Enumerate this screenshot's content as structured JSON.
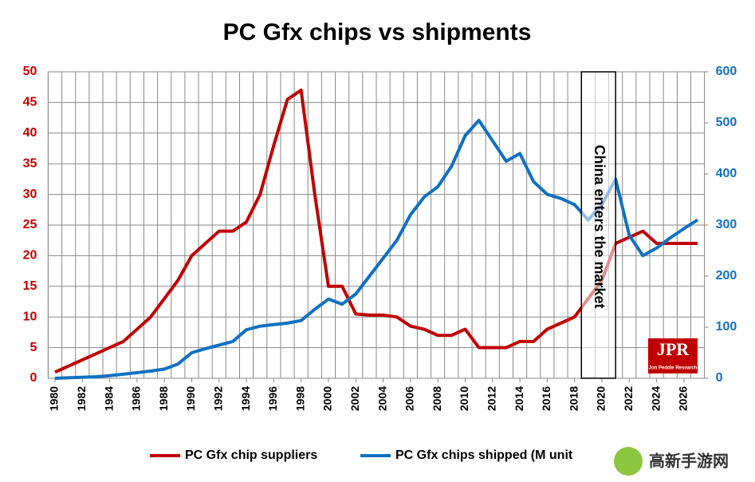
{
  "chart_data": {
    "type": "line",
    "title": "PC Gfx chips vs shipments",
    "x": [
      1980,
      1981,
      1982,
      1983,
      1984,
      1985,
      1986,
      1987,
      1988,
      1989,
      1990,
      1991,
      1992,
      1993,
      1994,
      1995,
      1996,
      1997,
      1998,
      1999,
      2000,
      2001,
      2002,
      2003,
      2004,
      2005,
      2006,
      2007,
      2008,
      2009,
      2010,
      2011,
      2012,
      2013,
      2014,
      2015,
      2016,
      2017,
      2018,
      2019,
      2020,
      2021,
      2022,
      2023,
      2024,
      2025,
      2026,
      2027
    ],
    "series": [
      {
        "name": "PC Gfx chip suppliers",
        "color": "#c00000",
        "values": [
          1,
          2,
          3,
          4,
          5,
          6,
          8,
          10,
          13,
          16,
          20,
          22,
          24,
          24,
          25.5,
          30,
          38,
          45.5,
          47,
          30,
          15,
          15,
          10.5,
          10.3,
          10.3,
          10,
          8.5,
          8,
          7,
          7,
          8,
          5,
          5,
          5,
          6,
          6,
          8,
          9,
          10,
          13,
          16,
          22,
          23,
          24,
          22,
          22,
          22,
          22
        ]
      },
      {
        "name": "PC Gfx chips shipped (M unit",
        "color": "#1070c0",
        "axis": "y2",
        "values": [
          0,
          1,
          2,
          3,
          5,
          8,
          11,
          14,
          18,
          28,
          50,
          58,
          65,
          72,
          95,
          102,
          105,
          108,
          113,
          135,
          155,
          145,
          165,
          200,
          235,
          270,
          320,
          355,
          375,
          415,
          475,
          505,
          465,
          425,
          440,
          385,
          360,
          352,
          340,
          310,
          340,
          390,
          280,
          240,
          255,
          275,
          293,
          310
        ]
      }
    ],
    "xlim": [
      1979.5,
      2027.5
    ],
    "xticks": [
      1980,
      1982,
      1984,
      1986,
      1988,
      1990,
      1992,
      1994,
      1996,
      1998,
      2000,
      2002,
      2004,
      2006,
      2008,
      2010,
      2012,
      2014,
      2016,
      2018,
      2020,
      2022,
      2024,
      2026
    ],
    "ylim": [
      0,
      50
    ],
    "yticks": [
      0,
      5,
      10,
      15,
      20,
      25,
      30,
      35,
      40,
      45,
      50
    ],
    "y2lim": [
      0,
      600
    ],
    "y2ticks": [
      0,
      100,
      200,
      300,
      400,
      500,
      600
    ],
    "grid": true,
    "annotation": {
      "text": "China enters the market",
      "x_range": [
        2018.5,
        2021
      ]
    },
    "logo": {
      "text": "JPR",
      "subtext": "Jon Peddie Research"
    },
    "watermark": "高新手游网"
  }
}
